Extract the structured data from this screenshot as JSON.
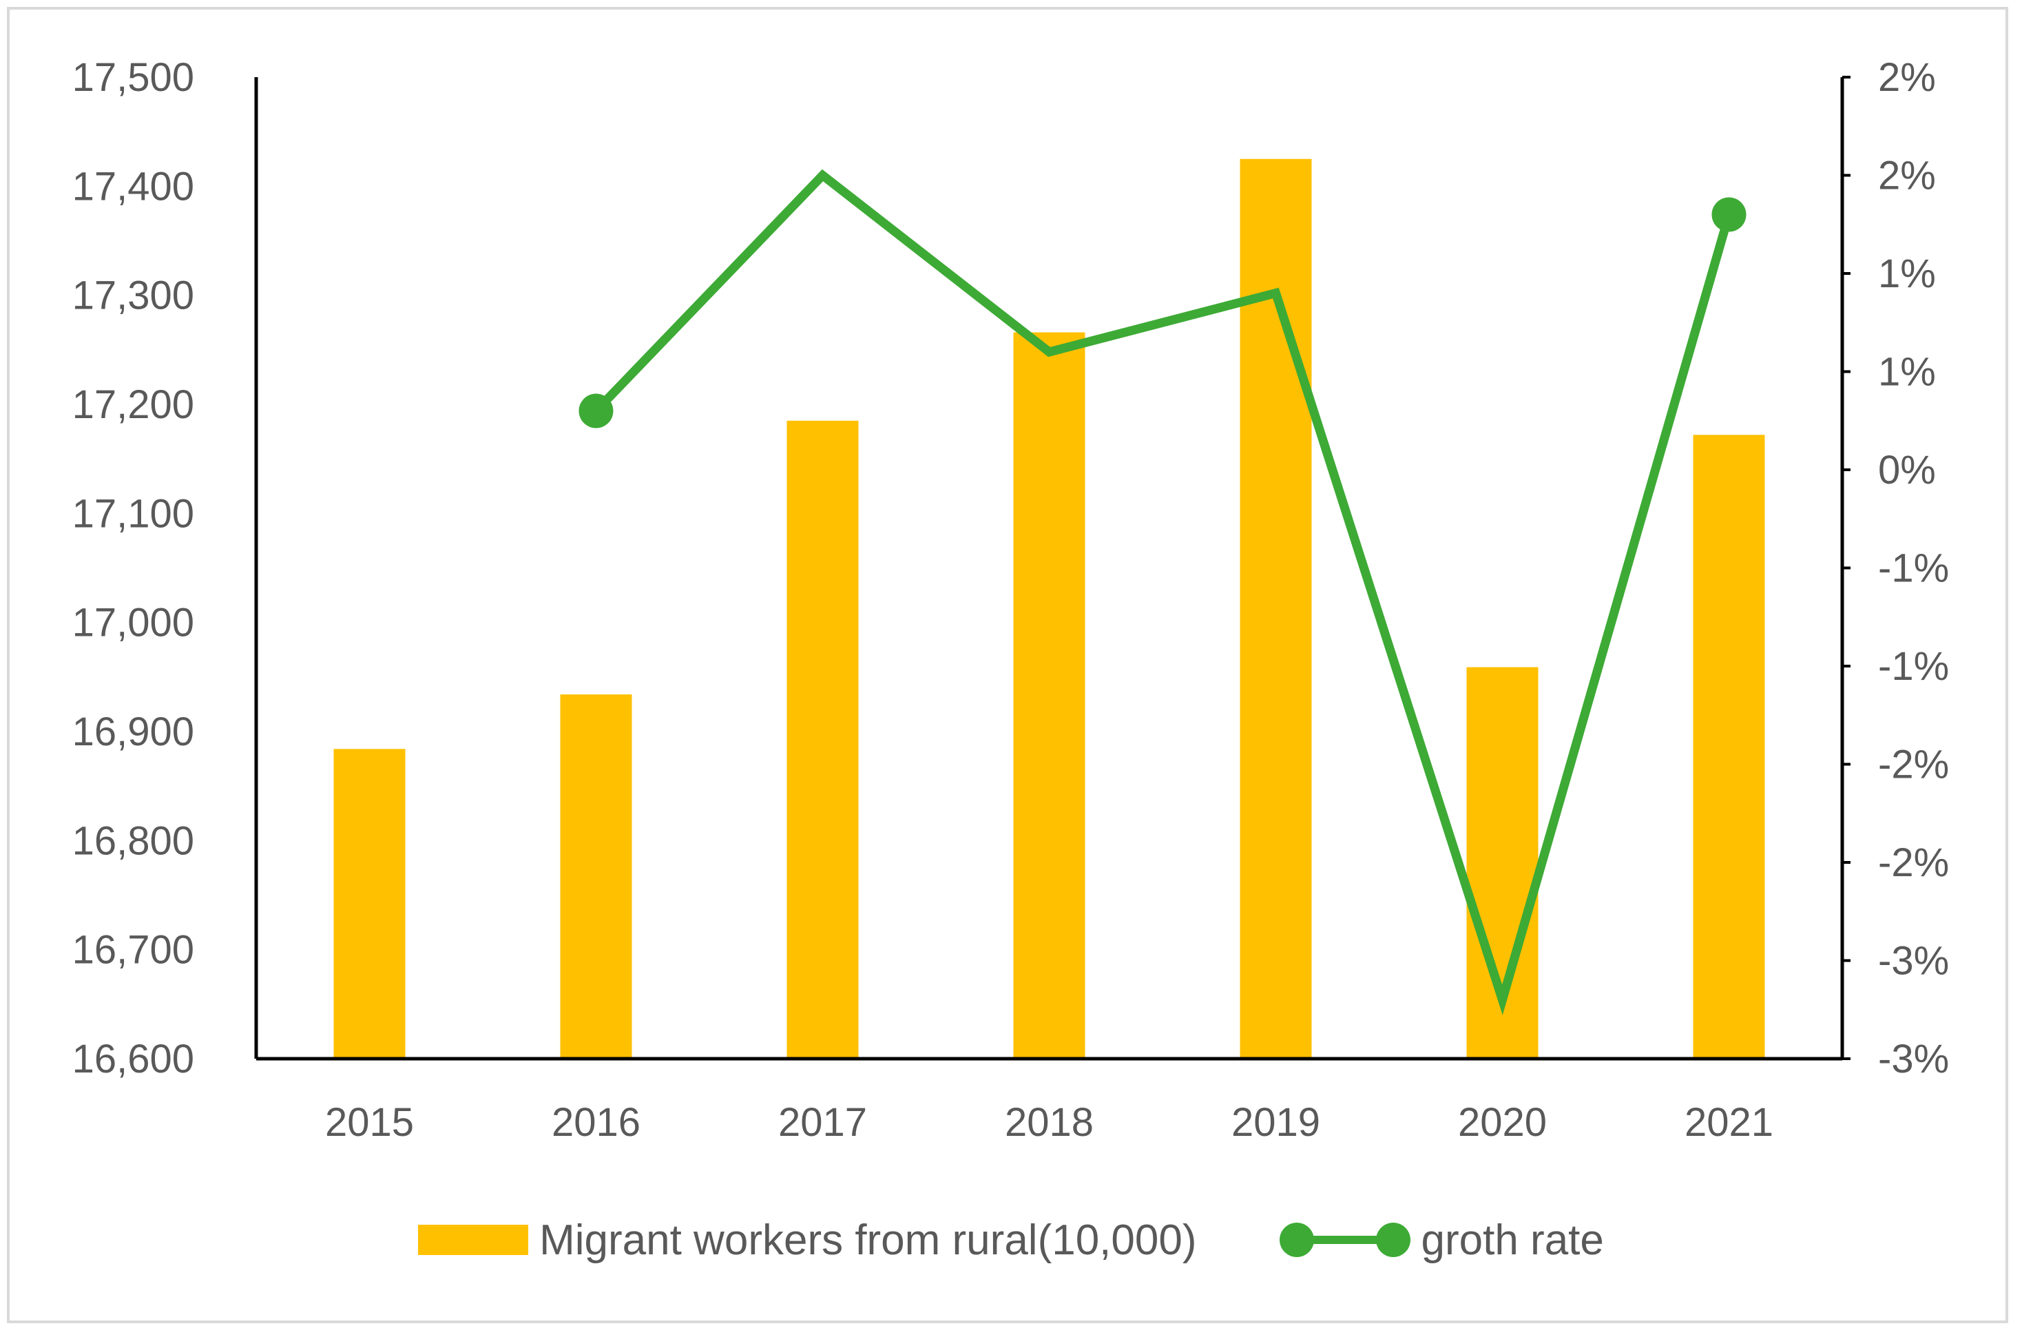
{
  "chart_data": {
    "type": "bar",
    "categories": [
      "2015",
      "2016",
      "2017",
      "2018",
      "2019",
      "2020",
      "2021"
    ],
    "series": [
      {
        "name": "Migrant workers from rural(10,000)",
        "type": "bar",
        "axis": "left",
        "color": "#FFC000",
        "values": [
          16884,
          16934,
          17185,
          17266,
          17425,
          16959,
          17172
        ]
      },
      {
        "name": "groth rate",
        "type": "line",
        "axis": "right",
        "color": "#3DAA35",
        "marker_color": "#3DAA35",
        "values": [
          null,
          0.3,
          1.5,
          0.6,
          0.9,
          -2.7,
          1.3
        ]
      }
    ],
    "y_left": {
      "ylim": [
        16600,
        17500
      ],
      "ticks": [
        16600,
        16700,
        16800,
        16900,
        17000,
        17100,
        17200,
        17300,
        17400,
        17500
      ],
      "tick_labels": [
        "16,600",
        "16,700",
        "16,800",
        "16,900",
        "17,000",
        "17,100",
        "17,200",
        "17,300",
        "17,400",
        "17,500"
      ]
    },
    "y_right": {
      "ylim": [
        -3.0,
        2.0
      ],
      "ticks": [
        -3.0,
        -2.5,
        -2.0,
        -1.5,
        -1.0,
        -0.5,
        0,
        0.5,
        1.0,
        1.5,
        2.0
      ],
      "tick_labels": [
        "-3%",
        "-3%",
        "-2%",
        "-2%",
        "-1%",
        "-1%",
        "0%",
        "1%",
        "1%",
        "2%",
        "2%"
      ]
    },
    "grid": false,
    "legend_position": "bottom"
  },
  "legend": {
    "bar_label": "Migrant workers from rural(10,000)",
    "line_label": "groth rate"
  }
}
